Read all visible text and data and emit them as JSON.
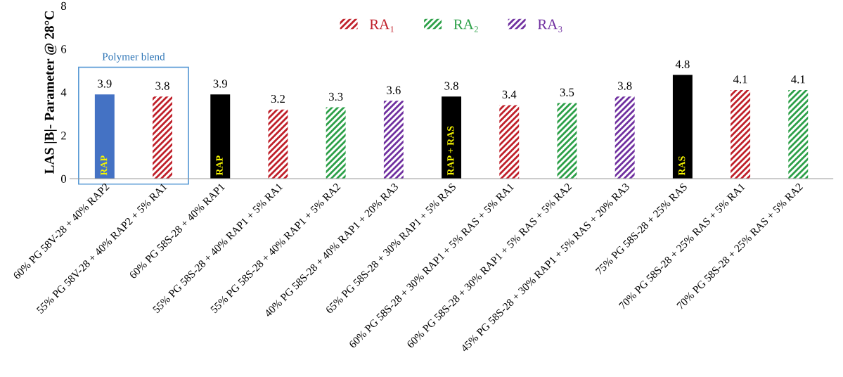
{
  "chart_data": {
    "type": "bar",
    "ylabel": "LAS |B|- Parameter @ 28°C",
    "categories": [
      "60% PG 58V-28 + 40% RAP2",
      "55% PG 58V-28 + 40% RAP2 + 5% RA1",
      "60% PG 58S-28 + 40% RAP1",
      "55% PG 58S-28 + 40% RAP1 + 5% RA1",
      "55% PG 58S-28 + 40% RAP1 + 5% RA2",
      "40% PG 58S-28 + 40% RAP1 + 20% RA3",
      "65% PG 58S-28 + 30% RAP1 + 5% RAS",
      "60% PG 58S-28 + 30% RAP1 + 5% RAS + 5% RA1",
      "60% PG 58S-28 + 30% RAP1 + 5% RAS + 5% RA2",
      "45% PG 58S-28 + 30% RAP1 + 5% RAS + 20% RA3",
      "75% PG 58S-28 + 25% RAS",
      "70% PG 58S-28 + 25% RAS + 5% RA1",
      "70% PG 58S-28 + 25% RAS + 5% RA2"
    ],
    "series": [
      {
        "colors": [
          "#4472c4",
          null,
          "#000000",
          null,
          null,
          null,
          "#000000",
          null,
          null,
          null,
          "#000000",
          null,
          null
        ],
        "values": [
          3.9,
          null,
          3.9,
          null,
          null,
          null,
          3.8,
          null,
          null,
          null,
          4.8,
          null,
          null
        ]
      },
      {
        "name": "RA₁",
        "color": "#c0202a",
        "values": [
          null,
          3.8,
          null,
          3.2,
          null,
          null,
          null,
          3.4,
          null,
          null,
          null,
          4.1,
          null
        ]
      },
      {
        "name": "RA₂",
        "color": "#2ca048",
        "values": [
          null,
          null,
          null,
          null,
          3.3,
          null,
          null,
          null,
          3.5,
          null,
          null,
          null,
          4.1
        ]
      },
      {
        "name": "RA₃",
        "color": "#7030a0",
        "values": [
          null,
          null,
          null,
          null,
          null,
          3.6,
          null,
          null,
          null,
          3.8,
          null,
          null,
          null
        ]
      }
    ],
    "ylim": [
      0,
      8
    ],
    "yticks": [
      0,
      2,
      4,
      6,
      8
    ],
    "grid": false,
    "legend": "top",
    "data_labels": true,
    "annotations": [
      "Polymer blend",
      "RAP",
      "RAP",
      "RAP + RAS",
      "RAS"
    ]
  }
}
